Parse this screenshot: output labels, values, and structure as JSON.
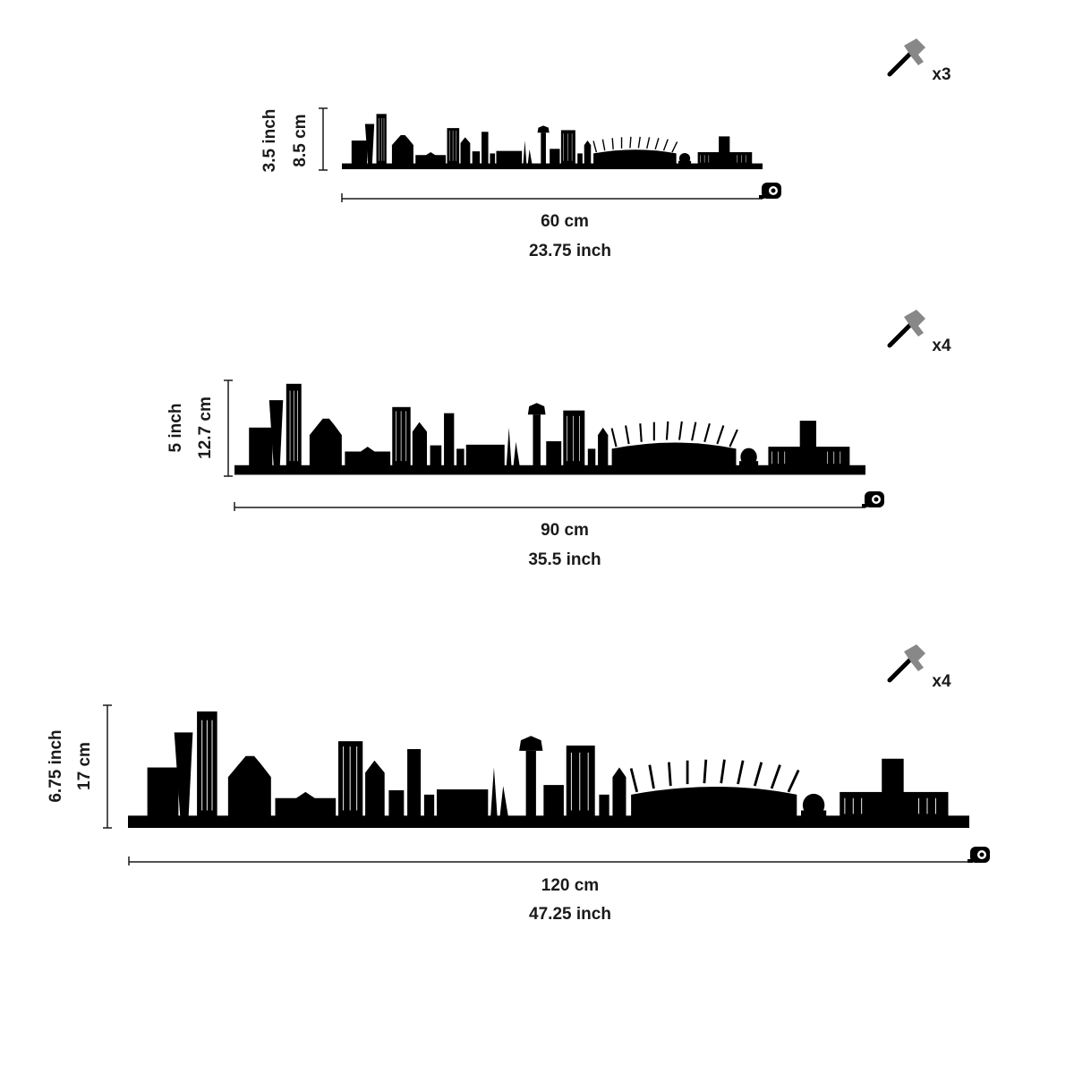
{
  "sizes": [
    {
      "height_inch": "3.5 inch",
      "height_cm": "8.5 cm",
      "width_cm": "60 cm",
      "width_inch": "23.75 inch",
      "nails": "x3"
    },
    {
      "height_inch": "5 inch",
      "height_cm": "12.7 cm",
      "width_cm": "90 cm",
      "width_inch": "35.5 inch",
      "nails": "x4"
    },
    {
      "height_inch": "6.75 inch",
      "height_cm": "17 cm",
      "width_cm": "120 cm",
      "width_inch": "47.25 inch",
      "nails": "x4"
    }
  ]
}
